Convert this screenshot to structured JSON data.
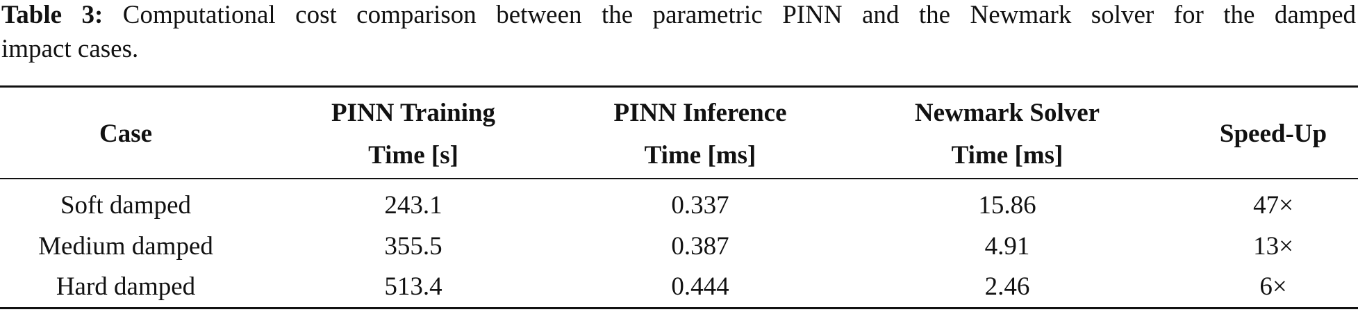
{
  "caption": {
    "label": "Table 3:",
    "lines": [
      "Computational cost comparison between the parametric PINN and the Newmark solver for the damped",
      "impact cases."
    ]
  },
  "table": {
    "header": [
      [
        "Case"
      ],
      [
        "PINN Training",
        "Time [s]"
      ],
      [
        "PINN Inference",
        "Time [ms]"
      ],
      [
        "Newmark Solver",
        "Time [ms]"
      ],
      [
        "Speed-Up"
      ]
    ],
    "rows": [
      [
        "Soft damped",
        "243.1",
        "0.337",
        "15.86",
        "47×"
      ],
      [
        "Medium damped",
        "355.5",
        "0.387",
        "4.91",
        "13×"
      ],
      [
        "Hard damped",
        "513.4",
        "0.444",
        "2.46",
        "6×"
      ]
    ]
  }
}
